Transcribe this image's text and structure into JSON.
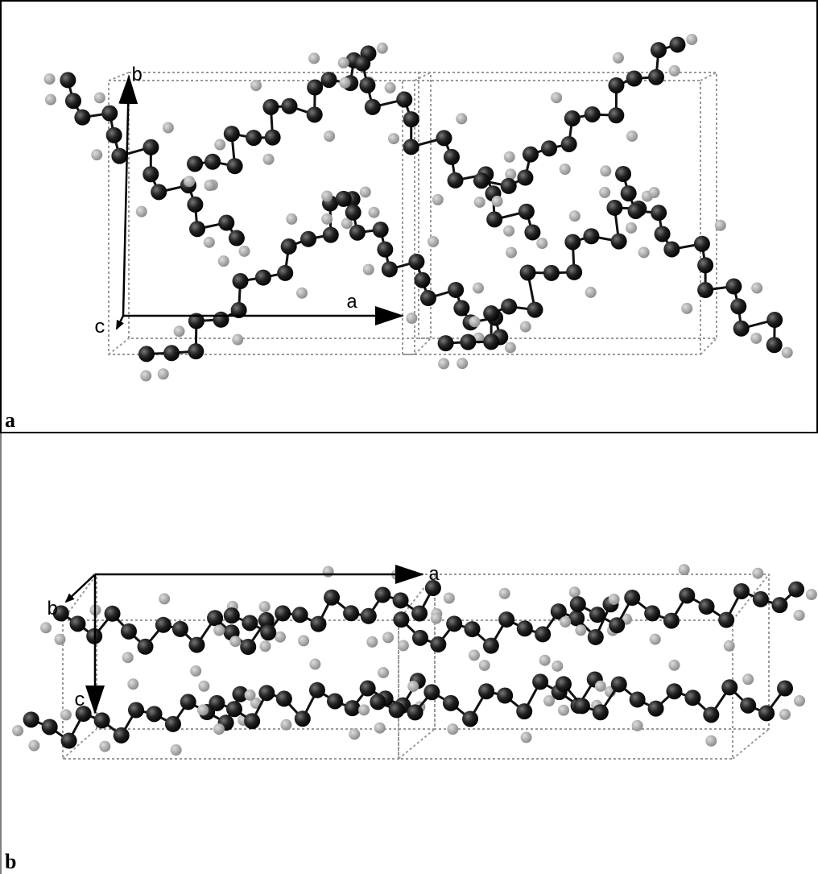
{
  "panels": [
    {
      "label": "a",
      "axes": {
        "b": "b",
        "a": "a",
        "c": "c"
      }
    },
    {
      "label": "b",
      "axes": {
        "a": "a",
        "b": "b",
        "c": "c"
      }
    }
  ]
}
